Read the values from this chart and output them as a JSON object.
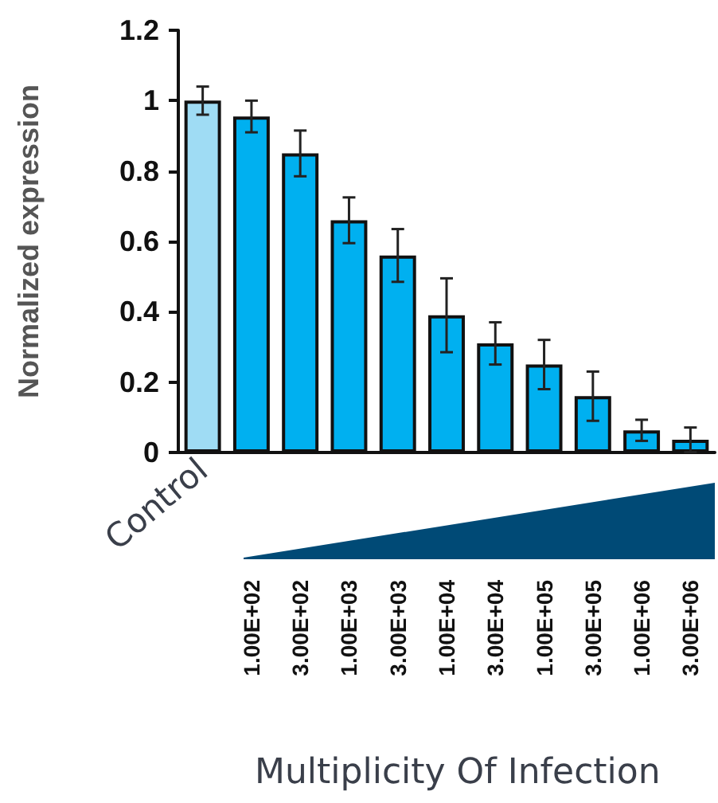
{
  "chart_data": {
    "type": "bar",
    "xlabel": "Multiplicity Of Infection",
    "ylabel": "Normalized expression",
    "categories": [
      "Control",
      "1.00E+02",
      "3.00E+02",
      "1.00E+03",
      "3.00E+03",
      "1.00E+04",
      "3.00E+04",
      "1.00E+05",
      "3.00E+05",
      "1.00E+06",
      "3.00E+06"
    ],
    "values": [
      1.0,
      0.955,
      0.85,
      0.66,
      0.56,
      0.39,
      0.31,
      0.25,
      0.16,
      0.063,
      0.036
    ],
    "errors": [
      0.04,
      0.045,
      0.065,
      0.065,
      0.075,
      0.105,
      0.06,
      0.07,
      0.07,
      0.03,
      0.035
    ],
    "colors": [
      "#9fdcf4",
      "#00b0f0",
      "#00b0f0",
      "#00b0f0",
      "#00b0f0",
      "#00b0f0",
      "#00b0f0",
      "#00b0f0",
      "#00b0f0",
      "#00b0f0",
      "#00b0f0"
    ],
    "ylim": [
      0,
      1.2
    ],
    "yticks": [
      0,
      0.2,
      0.4,
      0.6,
      0.8,
      1,
      1.2
    ],
    "grid": false
  }
}
